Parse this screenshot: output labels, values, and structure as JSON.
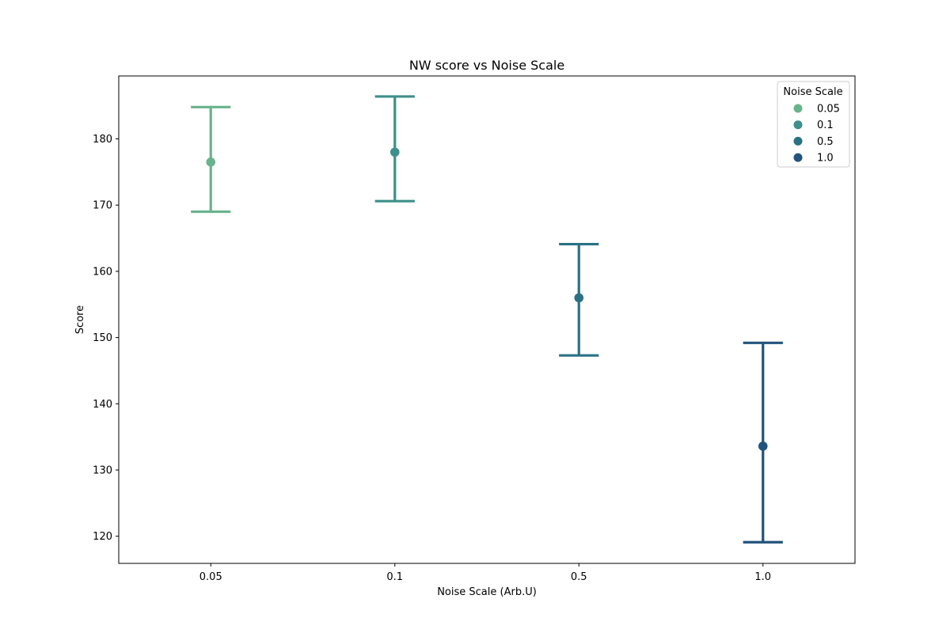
{
  "chart_data": {
    "type": "scatter",
    "title": "NW score vs Noise Scale",
    "xlabel": "Noise Scale (Arb.U)",
    "ylabel": "Score",
    "categories": [
      "0.05",
      "0.1",
      "0.5",
      "1.0"
    ],
    "ylim": [
      115.9,
      189.5
    ],
    "yticks": [
      120,
      130,
      140,
      150,
      160,
      170,
      180
    ],
    "grid": false,
    "legend": {
      "title": "Noise Scale",
      "placement": "top-right"
    },
    "series": [
      {
        "name": "0.05",
        "color": "#69b38c",
        "mean": 176.5,
        "lower": 169.0,
        "upper": 184.8
      },
      {
        "name": "0.1",
        "color": "#3f8f8a",
        "mean": 178.0,
        "lower": 170.6,
        "upper": 186.4
      },
      {
        "name": "0.5",
        "color": "#2a7185",
        "mean": 156.0,
        "lower": 147.3,
        "upper": 164.1
      },
      {
        "name": "1.0",
        "color": "#22537c",
        "mean": 133.6,
        "lower": 119.1,
        "upper": 149.2
      }
    ]
  }
}
